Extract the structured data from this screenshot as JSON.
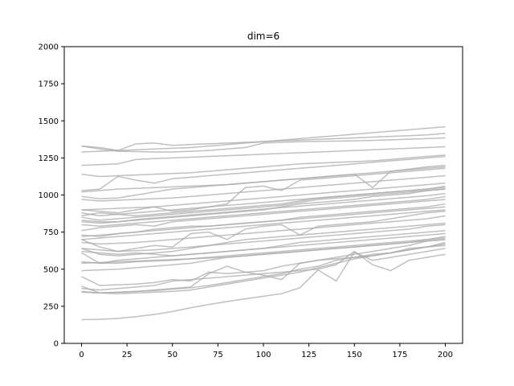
{
  "chart_data": {
    "type": "line",
    "title": "dim=6",
    "xlabel": "",
    "ylabel": "",
    "xlim": [
      -9.5,
      209.5
    ],
    "ylim": [
      0,
      2000
    ],
    "x_ticks": [
      0,
      25,
      50,
      75,
      100,
      125,
      150,
      175,
      200
    ],
    "y_ticks": [
      0,
      250,
      500,
      750,
      1000,
      1250,
      1500,
      1750,
      2000
    ],
    "grid": false,
    "legend": "none",
    "line_color": "#a9a9a9",
    "x": [
      0,
      10,
      20,
      30,
      40,
      50,
      60,
      70,
      80,
      90,
      100,
      110,
      120,
      130,
      140,
      150,
      160,
      170,
      180,
      190,
      200
    ],
    "series": [
      {
        "values": [
          1330,
          1320,
          1300,
          1345,
          1350,
          1335,
          1340,
          1345,
          1350,
          1355,
          1360,
          1365,
          1370,
          1375,
          1380,
          1385,
          1390,
          1395,
          1400,
          1405,
          1415
        ]
      },
      {
        "values": [
          1330,
          1310,
          1295,
          1293,
          1290,
          1290,
          1295,
          1300,
          1310,
          1320,
          1350,
          1355,
          1360,
          1362,
          1363,
          1365,
          1368,
          1372,
          1376,
          1380,
          1385
        ]
      },
      {
        "values": [
          1290,
          1295,
          1300,
          1305,
          1310,
          1315,
          1320,
          1330,
          1340,
          1350,
          1360,
          1370,
          1380,
          1390,
          1400,
          1410,
          1420,
          1430,
          1440,
          1450,
          1460
        ]
      },
      {
        "values": [
          1200,
          1205,
          1210,
          1240,
          1245,
          1250,
          1255,
          1260,
          1265,
          1270,
          1275,
          1280,
          1285,
          1290,
          1295,
          1300,
          1305,
          1310,
          1315,
          1320,
          1325
        ]
      },
      {
        "values": [
          1140,
          1125,
          1130,
          1135,
          1140,
          1145,
          1150,
          1160,
          1170,
          1180,
          1190,
          1200,
          1210,
          1215,
          1220,
          1225,
          1230,
          1240,
          1250,
          1260,
          1270
        ]
      },
      {
        "values": [
          1030,
          1040,
          1125,
          1100,
          1080,
          1110,
          1120,
          1130,
          1140,
          1150,
          1160,
          1170,
          1180,
          1190,
          1200,
          1210,
          1220,
          1230,
          1240,
          1250,
          1260
        ]
      },
      {
        "values": [
          1020,
          1030,
          1040,
          1045,
          1050,
          1055,
          1060,
          1065,
          1070,
          1080,
          1090,
          1100,
          1110,
          1120,
          1130,
          1140,
          1150,
          1160,
          1170,
          1180,
          1190
        ]
      },
      {
        "values": [
          990,
          975,
          980,
          1000,
          1020,
          1040,
          1050,
          1060,
          1070,
          1080,
          1090,
          1100,
          1110,
          1120,
          1130,
          1140,
          1050,
          1160,
          1175,
          1190,
          1200
        ]
      },
      {
        "values": [
          970,
          960,
          965,
          970,
          975,
          980,
          990,
          1000,
          1010,
          1020,
          1030,
          1040,
          1050,
          1060,
          1070,
          1080,
          1090,
          1100,
          1110,
          1120,
          1130
        ]
      },
      {
        "values": [
          900,
          905,
          910,
          915,
          920,
          930,
          940,
          950,
          960,
          970,
          980,
          990,
          1000,
          1010,
          1020,
          1030,
          1040,
          1050,
          1060,
          1070,
          1080
        ]
      },
      {
        "values": [
          900,
          890,
          880,
          900,
          920,
          890,
          900,
          920,
          940,
          1050,
          1060,
          1030,
          1100,
          1110,
          1120,
          1130,
          1140,
          1150,
          1160,
          1170,
          1180
        ]
      },
      {
        "values": [
          880,
          860,
          870,
          880,
          890,
          900,
          910,
          920,
          930,
          940,
          950,
          960,
          970,
          980,
          990,
          1000,
          1010,
          1020,
          1030,
          1040,
          1050
        ]
      },
      {
        "values": [
          860,
          880,
          870,
          860,
          870,
          880,
          890,
          900,
          910,
          920,
          930,
          940,
          960,
          980,
          990,
          1000,
          1010,
          1020,
          1030,
          1040,
          1060
        ]
      },
      {
        "values": [
          850,
          830,
          840,
          850,
          860,
          870,
          880,
          890,
          900,
          910,
          920,
          930,
          950,
          970,
          980,
          990,
          1000,
          1010,
          1020,
          1030,
          1040
        ]
      },
      {
        "values": [
          830,
          820,
          820,
          830,
          840,
          850,
          860,
          870,
          880,
          890,
          900,
          920,
          940,
          950,
          960,
          970,
          990,
          1000,
          1010,
          1030,
          1040
        ]
      },
      {
        "values": [
          820,
          810,
          820,
          835,
          845,
          855,
          865,
          875,
          885,
          895,
          905,
          915,
          925,
          935,
          945,
          955,
          965,
          975,
          985,
          995,
          1010
        ]
      },
      {
        "values": [
          800,
          790,
          800,
          810,
          820,
          830,
          840,
          850,
          860,
          870,
          880,
          890,
          900,
          910,
          920,
          930,
          940,
          950,
          960,
          970,
          990
        ]
      },
      {
        "values": [
          760,
          780,
          790,
          800,
          790,
          820,
          830,
          840,
          850,
          860,
          870,
          880,
          890,
          900,
          910,
          920,
          930,
          940,
          950,
          960,
          970
        ]
      },
      {
        "values": [
          730,
          720,
          740,
          750,
          770,
          780,
          790,
          790,
          800,
          810,
          820,
          830,
          850,
          860,
          870,
          880,
          890,
          900,
          910,
          920,
          940
        ]
      },
      {
        "values": [
          720,
          730,
          740,
          750,
          760,
          770,
          780,
          790,
          800,
          810,
          820,
          830,
          840,
          850,
          860,
          870,
          880,
          890,
          900,
          910,
          920
        ]
      },
      {
        "values": [
          700,
          710,
          720,
          730,
          740,
          750,
          760,
          770,
          780,
          790,
          800,
          810,
          820,
          830,
          840,
          850,
          860,
          870,
          880,
          890,
          900
        ]
      },
      {
        "values": [
          700,
          650,
          620,
          640,
          660,
          650,
          740,
          750,
          700,
          770,
          790,
          800,
          730,
          790,
          800,
          810,
          820,
          840,
          860,
          880,
          890
        ]
      },
      {
        "values": [
          680,
          670,
          675,
          680,
          690,
          700,
          710,
          720,
          730,
          740,
          750,
          760,
          770,
          780,
          790,
          800,
          810,
          820,
          830,
          840,
          860
        ]
      },
      {
        "values": [
          640,
          630,
          620,
          625,
          630,
          640,
          650,
          660,
          670,
          680,
          690,
          700,
          710,
          720,
          730,
          740,
          750,
          760,
          770,
          790,
          800
        ]
      },
      {
        "values": [
          640,
          600,
          590,
          600,
          610,
          620,
          640,
          660,
          680,
          700,
          710,
          720,
          730,
          740,
          750,
          760,
          770,
          780,
          790,
          800,
          810
        ]
      },
      {
        "values": [
          620,
          610,
          600,
          610,
          600,
          590,
          600,
          610,
          620,
          630,
          640,
          650,
          660,
          670,
          680,
          690,
          700,
          710,
          720,
          730,
          740
        ]
      },
      {
        "values": [
          610,
          540,
          560,
          570,
          580,
          590,
          600,
          610,
          620,
          630,
          640,
          660,
          680,
          690,
          700,
          710,
          720,
          730,
          740,
          750,
          760
        ]
      },
      {
        "values": [
          550,
          540,
          540,
          550,
          555,
          560,
          570,
          575,
          580,
          590,
          600,
          610,
          620,
          630,
          640,
          650,
          660,
          670,
          680,
          690,
          700
        ]
      },
      {
        "values": [
          540,
          545,
          550,
          555,
          560,
          565,
          570,
          580,
          590,
          600,
          610,
          620,
          630,
          640,
          650,
          660,
          670,
          680,
          690,
          700,
          710
        ]
      },
      {
        "values": [
          490,
          495,
          500,
          510,
          520,
          530,
          540,
          560,
          580,
          590,
          600,
          610,
          620,
          630,
          640,
          650,
          660,
          670,
          680,
          700,
          720
        ]
      },
      {
        "values": [
          450,
          390,
          395,
          400,
          410,
          430,
          420,
          480,
          470,
          480,
          490,
          520,
          540,
          560,
          580,
          600,
          620,
          640,
          660,
          690,
          700
        ]
      },
      {
        "values": [
          385,
          340,
          345,
          350,
          360,
          370,
          380,
          470,
          520,
          480,
          460,
          430,
          540,
          560,
          570,
          580,
          600,
          610,
          630,
          650,
          680
        ]
      },
      {
        "values": [
          370,
          360,
          370,
          380,
          390,
          420,
          430,
          440,
          450,
          460,
          470,
          480,
          490,
          500,
          530,
          620,
          530,
          490,
          560,
          580,
          600
        ]
      },
      {
        "values": [
          350,
          340,
          335,
          340,
          345,
          350,
          360,
          380,
          400,
          420,
          440,
          460,
          480,
          510,
          540,
          570,
          590,
          610,
          630,
          650,
          670
        ]
      },
      {
        "values": [
          345,
          340,
          345,
          350,
          355,
          365,
          375,
          390,
          410,
          430,
          450,
          470,
          500,
          520,
          560,
          580,
          590,
          610,
          640,
          650,
          660
        ]
      },
      {
        "values": [
          160,
          162,
          168,
          180,
          195,
          215,
          240,
          262,
          282,
          300,
          318,
          335,
          375,
          495,
          420,
          615,
          560,
          580,
          600,
          620,
          640
        ]
      }
    ]
  }
}
